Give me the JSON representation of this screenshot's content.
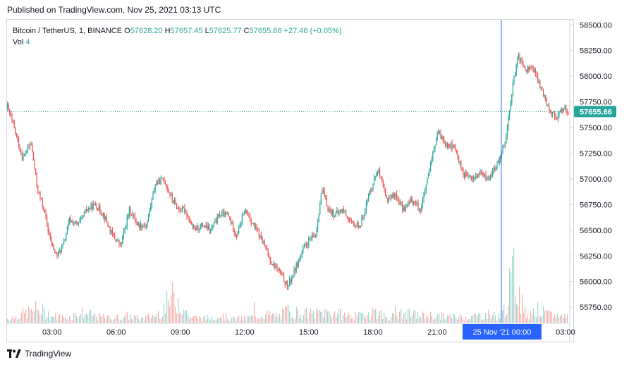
{
  "header": {
    "published": "Published on TradingView.com, Nov 25, 2021 03:13 UTC"
  },
  "legend": {
    "symbol": "Bitcoin / TetherUS, 1, BINANCE",
    "o_label": "O",
    "o_value": "57628.20",
    "h_label": "H",
    "h_value": "57657.45",
    "l_label": "L",
    "l_value": "57625.77",
    "c_label": "C",
    "c_value": "57655.66",
    "change": "+27.46 (+0.05%)",
    "vol_label": "Vol",
    "vol_value": "4"
  },
  "colors": {
    "up": "#26a69a",
    "down": "#ef5350",
    "crosshair": "#2962ff",
    "price_tag": "#26a69a",
    "grid": "#f0f3fa"
  },
  "footer": {
    "brand": "TradingView"
  },
  "chart_data": {
    "type": "candlestick",
    "title": "Bitcoin / TetherUS, 1, BINANCE",
    "interval": "1 minute",
    "ylim": [
      55600,
      58550
    ],
    "y_ticks": [
      "58500.00",
      "58250.00",
      "58000.00",
      "57750.00",
      "57500.00",
      "57250.00",
      "57000.00",
      "56750.00",
      "56500.00",
      "56250.00",
      "56000.00",
      "55750.00"
    ],
    "x_ticks": [
      "03:00",
      "06:00",
      "09:00",
      "12:00",
      "15:00",
      "18:00",
      "21:00",
      "03:00"
    ],
    "x_range_hours": [
      0.9,
      27.2
    ],
    "last_price_label": "57655.66",
    "last_price": 57655.66,
    "crosshair_label": "25 Nov '21   00:00",
    "crosshair_hour": 24.0,
    "grid": false,
    "series": [
      {
        "name": "Close",
        "x_hours": [
          0.9,
          1.2,
          1.6,
          2.0,
          2.3,
          2.6,
          2.9,
          3.2,
          3.5,
          3.8,
          4.2,
          4.6,
          5.0,
          5.4,
          5.8,
          6.2,
          6.6,
          7.0,
          7.4,
          7.8,
          8.2,
          8.6,
          8.9,
          9.2,
          9.6,
          10.0,
          10.4,
          10.8,
          11.2,
          11.6,
          12.0,
          12.4,
          12.8,
          13.2,
          13.6,
          14.0,
          14.4,
          14.7,
          15.0,
          15.3,
          15.6,
          15.9,
          16.2,
          16.6,
          17.0,
          17.4,
          17.8,
          18.2,
          18.6,
          19.0,
          19.4,
          19.8,
          20.2,
          20.6,
          21.0,
          21.4,
          21.8,
          22.2,
          22.6,
          23.0,
          23.4,
          23.8,
          24.2,
          24.5,
          24.8,
          25.1,
          25.4,
          25.7,
          26.0,
          26.3,
          26.6,
          26.9,
          27.1
        ],
        "values": [
          57700,
          57500,
          57200,
          57350,
          56900,
          56700,
          56400,
          56250,
          56350,
          56600,
          56550,
          56700,
          56750,
          56650,
          56450,
          56350,
          56700,
          56550,
          56550,
          56950,
          57000,
          56800,
          56700,
          56700,
          56500,
          56550,
          56500,
          56650,
          56650,
          56450,
          56700,
          56550,
          56400,
          56200,
          56100,
          55950,
          56150,
          56300,
          56400,
          56450,
          56900,
          56700,
          56650,
          56700,
          56550,
          56550,
          56850,
          57100,
          56800,
          56850,
          56700,
          56800,
          56700,
          57050,
          57450,
          57350,
          57300,
          57050,
          57000,
          57050,
          57000,
          57150,
          57400,
          57900,
          58200,
          58050,
          58100,
          57950,
          57800,
          57650,
          57600,
          57700,
          57650
        ]
      },
      {
        "name": "Vol",
        "x_hours": [
          0.9,
          1.6,
          2.3,
          3.0,
          3.7,
          4.4,
          5.1,
          5.8,
          6.5,
          7.2,
          7.9,
          8.6,
          8.9,
          9.4,
          10.1,
          10.8,
          11.5,
          12.2,
          12.9,
          13.6,
          14.0,
          14.5,
          15.2,
          15.9,
          16.6,
          17.3,
          18.0,
          18.7,
          19.4,
          20.1,
          20.8,
          21.5,
          22.2,
          22.9,
          23.5,
          24.0,
          24.6,
          25.1,
          25.6,
          26.2,
          26.8
        ],
        "values": [
          70,
          150,
          250,
          120,
          90,
          180,
          110,
          80,
          120,
          70,
          150,
          450,
          420,
          100,
          80,
          130,
          70,
          90,
          150,
          120,
          220,
          170,
          160,
          200,
          140,
          110,
          220,
          90,
          160,
          140,
          120,
          110,
          100,
          130,
          150,
          110,
          900,
          160,
          240,
          140,
          120
        ]
      }
    ]
  }
}
